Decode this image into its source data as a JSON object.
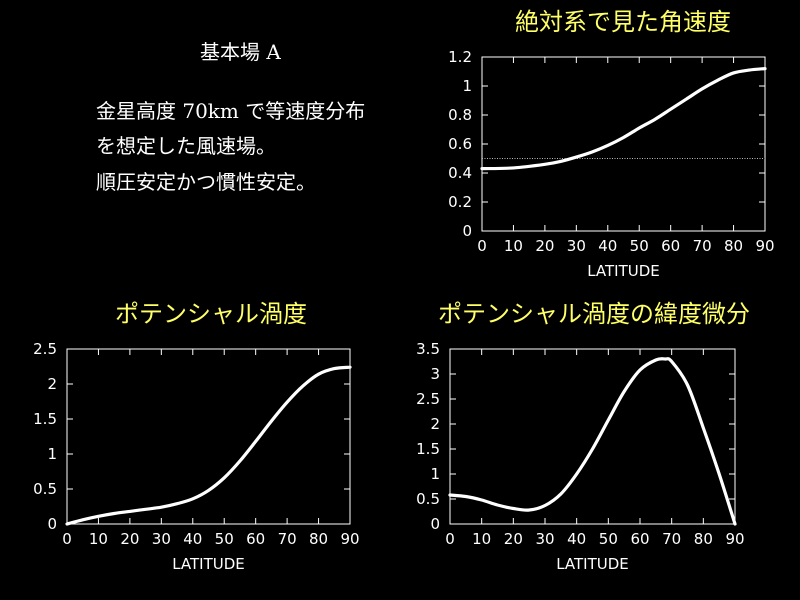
{
  "text": {
    "heading": "基本場 A",
    "lines": [
      "金星高度 70km で等速度分布",
      "を想定した風速場。",
      "順圧安定かつ慣性安定。"
    ]
  },
  "colors": {
    "background": "#000000",
    "curve": "#ffffff",
    "chart_title": "#ffff66"
  },
  "chart_data": [
    {
      "type": "line",
      "title": "絶対系で見た角速度",
      "xlabel": "LATITUDE",
      "ylabel": "",
      "xlim": [
        0,
        90
      ],
      "ylim": [
        0,
        1.2
      ],
      "xticks": [
        "0",
        "10",
        "20",
        "30",
        "40",
        "50",
        "60",
        "70",
        "80",
        "90"
      ],
      "yticks": [
        "0",
        "0.2",
        "0.4",
        "0.6",
        "0.8",
        "1",
        "1.2"
      ],
      "grid": false,
      "reference_line": 0.5,
      "series": [
        {
          "x": [
            0,
            10,
            20,
            25,
            30,
            35,
            40,
            45,
            50,
            55,
            60,
            65,
            70,
            75,
            80,
            85,
            90
          ],
          "y": [
            0.43,
            0.435,
            0.46,
            0.48,
            0.51,
            0.545,
            0.59,
            0.645,
            0.71,
            0.77,
            0.84,
            0.91,
            0.98,
            1.04,
            1.09,
            1.11,
            1.12
          ]
        }
      ]
    },
    {
      "type": "line",
      "title": "ポテンシャル渦度",
      "xlabel": "LATITUDE",
      "ylabel": "",
      "xlim": [
        0,
        90
      ],
      "ylim": [
        0,
        2.5
      ],
      "xticks": [
        "0",
        "10",
        "20",
        "30",
        "40",
        "50",
        "60",
        "70",
        "80",
        "90"
      ],
      "yticks": [
        "0",
        "0.5",
        "1",
        "1.5",
        "2",
        "2.5"
      ],
      "grid": false,
      "series": [
        {
          "x": [
            0,
            5,
            10,
            15,
            20,
            25,
            30,
            35,
            40,
            45,
            50,
            55,
            60,
            65,
            70,
            75,
            80,
            85,
            90
          ],
          "y": [
            0.0,
            0.06,
            0.11,
            0.15,
            0.18,
            0.21,
            0.24,
            0.29,
            0.36,
            0.48,
            0.66,
            0.9,
            1.18,
            1.47,
            1.74,
            1.97,
            2.14,
            2.22,
            2.24
          ]
        }
      ]
    },
    {
      "type": "line",
      "title": "ポテンシャル渦度の緯度微分",
      "xlabel": "LATITUDE",
      "ylabel": "",
      "xlim": [
        0,
        90
      ],
      "ylim": [
        0,
        3.5
      ],
      "xticks": [
        "0",
        "10",
        "20",
        "30",
        "40",
        "50",
        "60",
        "70",
        "80",
        "90"
      ],
      "yticks": [
        "0",
        "0.5",
        "1",
        "1.5",
        "2",
        "2.5",
        "3",
        "3.5"
      ],
      "grid": false,
      "series": [
        {
          "x": [
            0,
            5,
            10,
            15,
            20,
            25,
            30,
            35,
            40,
            45,
            50,
            55,
            60,
            65,
            68,
            70,
            75,
            80,
            85,
            90
          ],
          "y": [
            0.58,
            0.55,
            0.48,
            0.38,
            0.31,
            0.28,
            0.37,
            0.6,
            1.0,
            1.5,
            2.08,
            2.65,
            3.08,
            3.28,
            3.3,
            3.25,
            2.78,
            1.92,
            1.0,
            0.0
          ]
        }
      ]
    }
  ]
}
